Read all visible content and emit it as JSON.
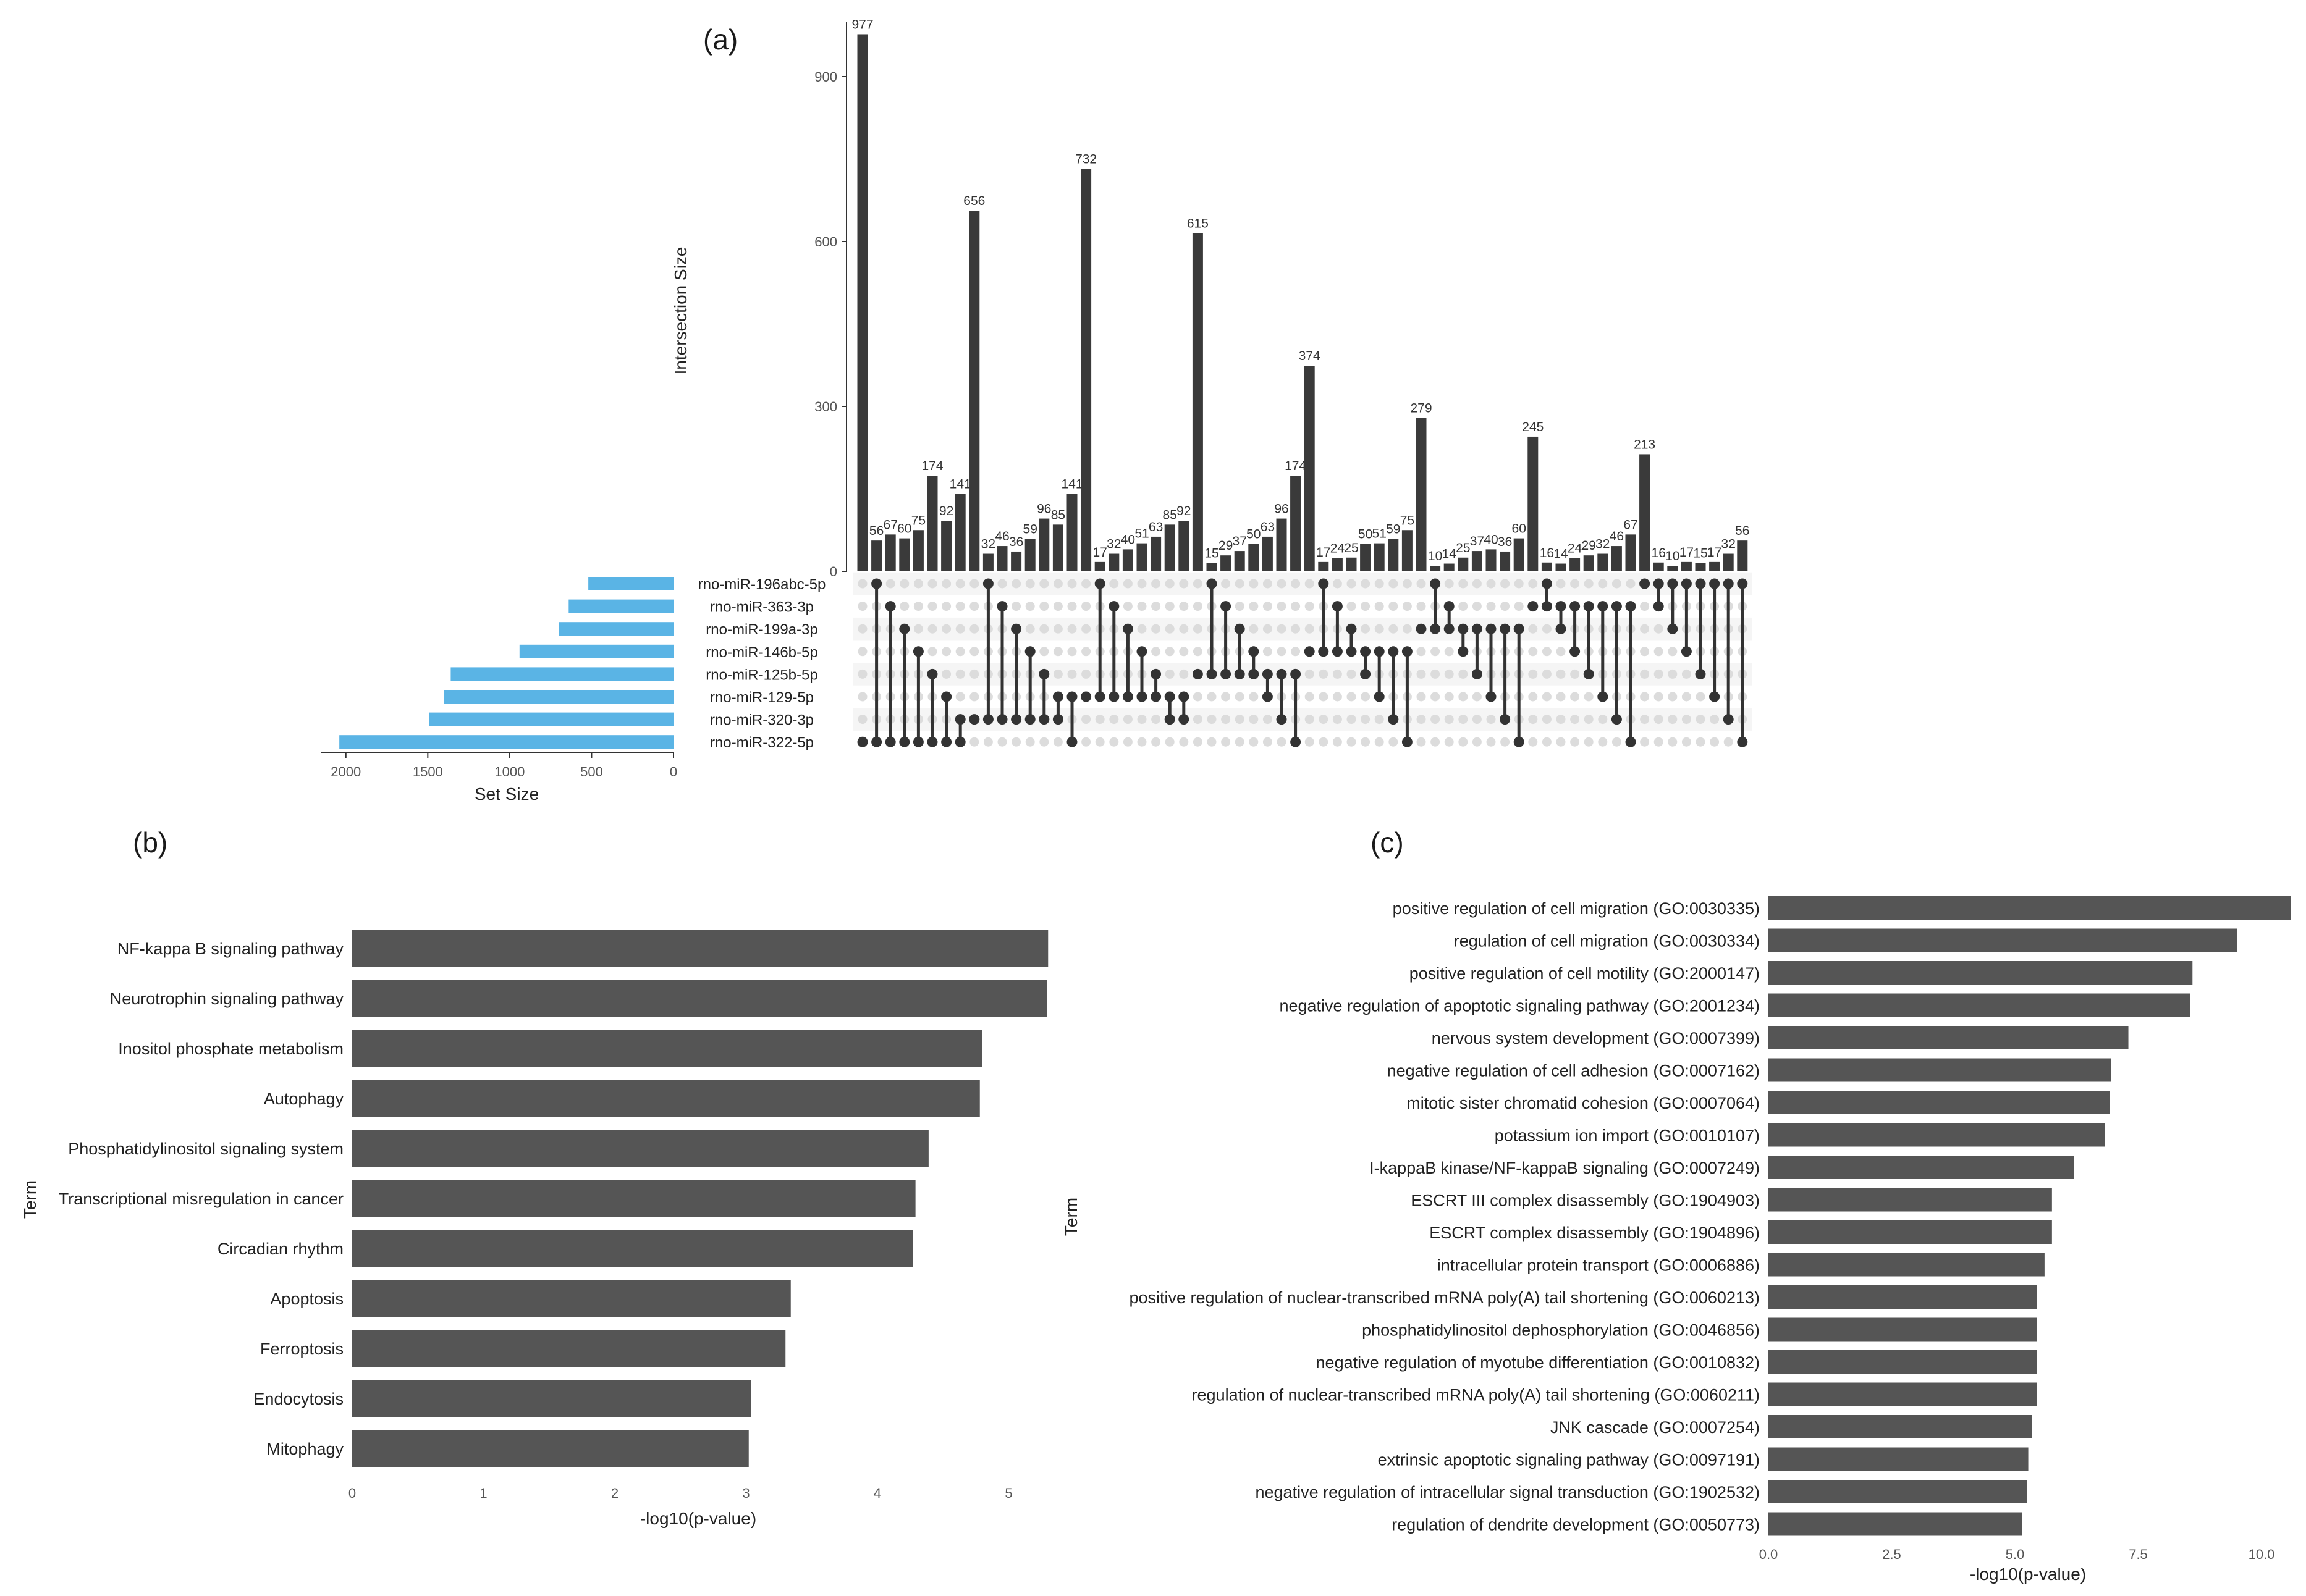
{
  "chart_data": [
    {
      "panel": "(a)",
      "type": "bar",
      "subtype": "upset",
      "ylabel": "Intersection Size",
      "ylim": [
        0,
        1000
      ],
      "yticks": [
        0,
        300,
        600,
        900
      ],
      "sets": [
        "rno-miR-196abc-5p",
        "rno-miR-363-3p",
        "rno-miR-199a-3p",
        "rno-miR-146b-5p",
        "rno-miR-125b-5p",
        "rno-miR-129-5p",
        "rno-miR-320-3p",
        "rno-miR-322-5p"
      ],
      "set_sizes": [
        520,
        640,
        700,
        940,
        1360,
        1400,
        1490,
        2040
      ],
      "set_size_label": "Set Size",
      "set_size_ticks": [
        0,
        500,
        1000,
        1500,
        2000
      ],
      "set_color": "#5ab4e5",
      "bar_color": "#3a3a3a",
      "values": [
        977,
        56,
        67,
        60,
        75,
        174,
        92,
        141,
        656,
        32,
        46,
        36,
        59,
        96,
        85,
        141,
        732,
        17,
        32,
        40,
        51,
        63,
        85,
        92,
        615,
        15,
        29,
        37,
        50,
        63,
        96,
        174,
        374,
        17,
        24,
        25,
        50,
        51,
        59,
        75,
        279,
        10,
        14,
        25,
        37,
        40,
        36,
        60,
        245,
        16,
        14,
        24,
        29,
        32,
        46,
        67,
        213,
        16,
        10,
        17,
        15,
        17,
        32,
        56
      ],
      "memberships": [
        [
          7
        ],
        [
          0,
          7
        ],
        [
          1,
          7
        ],
        [
          2,
          7
        ],
        [
          3,
          7
        ],
        [
          4,
          7
        ],
        [
          5,
          7
        ],
        [
          6,
          7
        ],
        [
          6
        ],
        [
          0,
          6
        ],
        [
          1,
          6
        ],
        [
          2,
          6
        ],
        [
          3,
          6
        ],
        [
          4,
          6
        ],
        [
          5,
          6
        ],
        [
          5,
          7
        ],
        [
          5
        ],
        [
          0,
          5
        ],
        [
          1,
          5
        ],
        [
          2,
          5
        ],
        [
          3,
          5
        ],
        [
          4,
          5
        ],
        [
          5,
          6
        ],
        [
          5,
          6
        ],
        [
          4
        ],
        [
          0,
          4
        ],
        [
          1,
          4
        ],
        [
          2,
          4
        ],
        [
          3,
          4
        ],
        [
          4,
          5
        ],
        [
          4,
          6
        ],
        [
          4,
          7
        ],
        [
          3
        ],
        [
          0,
          3
        ],
        [
          1,
          3
        ],
        [
          2,
          3
        ],
        [
          3,
          4
        ],
        [
          3,
          5
        ],
        [
          3,
          6
        ],
        [
          3,
          7
        ],
        [
          2
        ],
        [
          0,
          2
        ],
        [
          1,
          2
        ],
        [
          2,
          3
        ],
        [
          2,
          4
        ],
        [
          2,
          5
        ],
        [
          2,
          6
        ],
        [
          2,
          7
        ],
        [
          1
        ],
        [
          0,
          1
        ],
        [
          1,
          2
        ],
        [
          1,
          3
        ],
        [
          1,
          4
        ],
        [
          1,
          5
        ],
        [
          1,
          6
        ],
        [
          1,
          7
        ],
        [
          0
        ],
        [
          0,
          1
        ],
        [
          0,
          2
        ],
        [
          0,
          3
        ],
        [
          0,
          4
        ],
        [
          0,
          5
        ],
        [
          0,
          6
        ],
        [
          0,
          7
        ]
      ]
    },
    {
      "panel": "(b)",
      "type": "bar",
      "orientation": "horizontal",
      "ylabel": "Term",
      "xlabel": "-log10(p-value)",
      "xlim": [
        0,
        5.5
      ],
      "xticks": [
        0,
        1,
        2,
        3,
        4,
        5
      ],
      "bar_color": "#555555",
      "categories": [
        "NF-kappa B signaling pathway",
        "Neurotrophin signaling pathway",
        "Inositol phosphate metabolism",
        "Autophagy",
        "Phosphatidylinositol signaling system",
        "Transcriptional misregulation in cancer",
        "Circadian rhythm",
        "Apoptosis",
        "Ferroptosis",
        "Endocytosis",
        "Mitophagy"
      ],
      "values": [
        5.3,
        5.29,
        4.8,
        4.78,
        4.39,
        4.29,
        4.27,
        3.34,
        3.3,
        3.04,
        3.02
      ]
    },
    {
      "panel": "(c)",
      "type": "bar",
      "orientation": "horizontal",
      "ylabel": "Term",
      "xlabel": "-log10(p-value)",
      "xlim": [
        0,
        10.5
      ],
      "xticks": [
        "0.0",
        "2.5",
        "5.0",
        "7.5",
        "10.0"
      ],
      "bar_color": "#555555",
      "categories": [
        "positive regulation of cell migration (GO:0030335)",
        "regulation of cell migration (GO:0030334)",
        "positive regulation of cell motility (GO:2000147)",
        "negative regulation of apoptotic signaling pathway (GO:2001234)",
        "nervous system development (GO:0007399)",
        "negative regulation of cell adhesion (GO:0007162)",
        "mitotic sister chromatid cohesion (GO:0007064)",
        "potassium ion import (GO:0010107)",
        "I-kappaB kinase/NF-kappaB signaling (GO:0007249)",
        "ESCRT III complex disassembly (GO:1904903)",
        "ESCRT complex disassembly (GO:1904896)",
        "intracellular protein transport (GO:0006886)",
        "positive regulation of nuclear-transcribed mRNA poly(A) tail shortening (GO:0060213)",
        "phosphatidylinositol dephosphorylation (GO:0046856)",
        "negative regulation of myotube differentiation (GO:0010832)",
        "regulation of nuclear-transcribed mRNA poly(A) tail shortening (GO:0060211)",
        "JNK cascade (GO:0007254)",
        "extrinsic apoptotic signaling pathway (GO:0097191)",
        "negative regulation of intracellular signal transduction (GO:1902532)",
        "regulation of dendrite development (GO:0050773)"
      ],
      "values": [
        10.6,
        9.5,
        8.6,
        8.55,
        7.3,
        6.95,
        6.92,
        6.82,
        6.2,
        5.75,
        5.75,
        5.6,
        5.45,
        5.45,
        5.45,
        5.45,
        5.35,
        5.27,
        5.25,
        5.15
      ]
    }
  ]
}
